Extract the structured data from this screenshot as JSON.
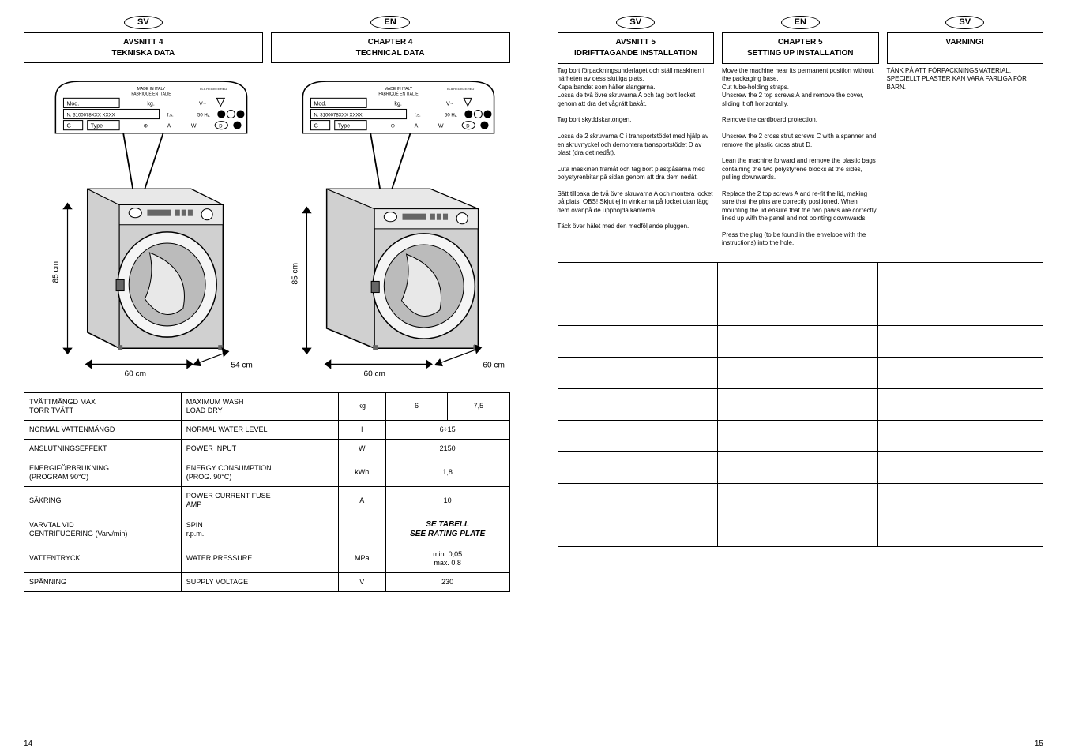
{
  "left_page": {
    "page_number": "14",
    "langs": [
      {
        "code": "SV",
        "chapter_title": "AVSNITT 4",
        "chapter_sub": "TEKNISKA DATA"
      },
      {
        "code": "EN",
        "chapter_title": "CHAPTER 4",
        "chapter_sub": "TECHNICAL DATA"
      }
    ],
    "diagram": {
      "dim_height_label": "85 cm",
      "dim_width_60": "60 cm",
      "dim_depth_54": "54 cm",
      "dim_depth_60": "60 cm",
      "plate_line1": "MADE IN ITALY",
      "plate_line2": "FABRIQUÉ EN ITALIE",
      "plate_mod": "Mod.",
      "plate_kg": "kg.",
      "plate_v": "V~",
      "plate_n": "N. 3100078XXX XXXX",
      "plate_fs": "f.s.",
      "plate_hz": "50 Hz",
      "plate_g": "G",
      "plate_type": "Type",
      "plate_a": "A",
      "plate_w": "W",
      "plate_d": "D",
      "plate_reg": "IS A REGISTERED"
    },
    "table": {
      "rows": [
        {
          "labels_sv": "TVÄTTMÄNGD MAX\nTORR TVÄTT",
          "labels_en": "MAXIMUM WASH\nLOAD DRY",
          "unit": "kg",
          "val1": "6",
          "val2": "7,5"
        },
        {
          "labels_sv": "NORMAL VATTENMÄNGD",
          "labels_en": "NORMAL WATER LEVEL",
          "unit": "l",
          "merged_val": "6÷15"
        },
        {
          "labels_sv": "ANSLUTNINGSEFFEKT",
          "labels_en": "POWER INPUT",
          "unit": "W",
          "merged_val": "2150"
        },
        {
          "labels_sv": "ENERGIFÖRBRUKNING\n(PROGRAM 90°C)",
          "labels_en": "ENERGY CONSUMPTION\n(PROG. 90°C)",
          "unit": "kWh",
          "merged_val": "1,8"
        },
        {
          "labels_sv": "SÄKRING",
          "labels_en": "POWER CURRENT FUSE\nAMP",
          "unit": "A",
          "merged_val": "10"
        },
        {
          "labels_sv": "VARVTAL VID\nCENTRIFUGERING (Varv/min)",
          "labels_en": "SPIN\nr.p.m.",
          "unit": "",
          "rating_sv": "SE TABELL",
          "rating_en": "SEE RATING PLATE"
        },
        {
          "labels_sv": "VATTENTRYCK",
          "labels_en": "WATER PRESSURE",
          "unit": "MPa",
          "merged_val": "min. 0,05\nmax. 0,8"
        },
        {
          "labels_sv": "SPÄNNING",
          "labels_en": "SUPPLY VOLTAGE",
          "unit": "V",
          "merged_val": "230"
        }
      ]
    }
  },
  "right_page": {
    "page_number": "15",
    "langs": [
      {
        "code": "SV",
        "chapter_title": "AVSNITT 5",
        "chapter_sub": "IDRIFTTAGANDE INSTALLATION",
        "body": [
          "Tag bort förpackningsunderlaget och ställ maskinen i närheten av dess slutliga plats.",
          "Kapa bandet som håller slangarna.",
          "Lossa de två övre skruvarna A och tag bort locket genom att dra det vågrätt bakåt.",
          "",
          "Tag bort skyddskartongen.",
          "",
          "Lossa de 2 skruvarna C i transportstödet med hjälp av en skruvnyckel och demontera transportstödet D av plast (dra det nedåt).",
          "",
          "Luta maskinen framåt och tag bort plastpåsarna med polystyrenbitar på sidan genom att dra dem nedåt.",
          "",
          "Sätt tillbaka de två övre skruvarna A och montera locket på plats. OBS! Skjut ej in vinklarna på locket utan lägg dem ovanpå de upphöjda kanterna.",
          "",
          "Täck över hålet med den medföljande pluggen."
        ]
      },
      {
        "code": "EN",
        "chapter_title": "CHAPTER 5",
        "chapter_sub": "SETTING UP INSTALLATION",
        "body": [
          "Move the machine near its permanent position without the packaging base.",
          "Cut tube-holding straps.",
          "Unscrew the 2 top screws A and remove the cover, sliding it off horizontally.",
          "",
          "Remove the cardboard protection.",
          "",
          "Unscrew the 2 cross strut screws C with a spanner and remove the plastic cross strut D.",
          "",
          "Lean the machine forward and remove the plastic bags containing the two polystyrene blocks at the sides, pulling downwards.",
          "",
          "Replace the 2 top screws A and re-fit the lid, making sure that the pins are correctly positioned. When mounting the lid ensure that the two pawls are correctly lined up with the panel and not pointing downwards.",
          "",
          "Press the plug (to be found in the envelope with the instructions) into the hole."
        ]
      },
      {
        "code": "SV",
        "chapter_title": "VARNING!",
        "chapter_sub": "",
        "body": [
          "TÄNK PÅ ATT FÖRPACKNINGSMATERIAL, SPECIELLT PLASTER KAN VARA FARLIGA FÖR BARN."
        ]
      }
    ],
    "table": {
      "rows": [
        {
          "c1": "",
          "c2": "",
          "c3": ""
        },
        {
          "c1": "",
          "c2": "",
          "c3": ""
        },
        {
          "c1": "",
          "c2": "",
          "c3": ""
        },
        {
          "c1": "",
          "c2": "",
          "c3": ""
        },
        {
          "c1": "",
          "c2": "",
          "c3": ""
        },
        {
          "c1": "",
          "c2": "",
          "c3": ""
        },
        {
          "c1": "",
          "c2": "",
          "c3": ""
        },
        {
          "c1": "",
          "c2": "",
          "c3": ""
        },
        {
          "c1": "",
          "c2": "",
          "c3": ""
        }
      ]
    }
  },
  "colors": {
    "line": "#000000",
    "machine_body": "#d0d0d0",
    "machine_body_light": "#e8e8e8",
    "machine_hatch_top": "#f5f5f5",
    "machine_trim": "#666666",
    "plate_bg": "#ffffff"
  }
}
